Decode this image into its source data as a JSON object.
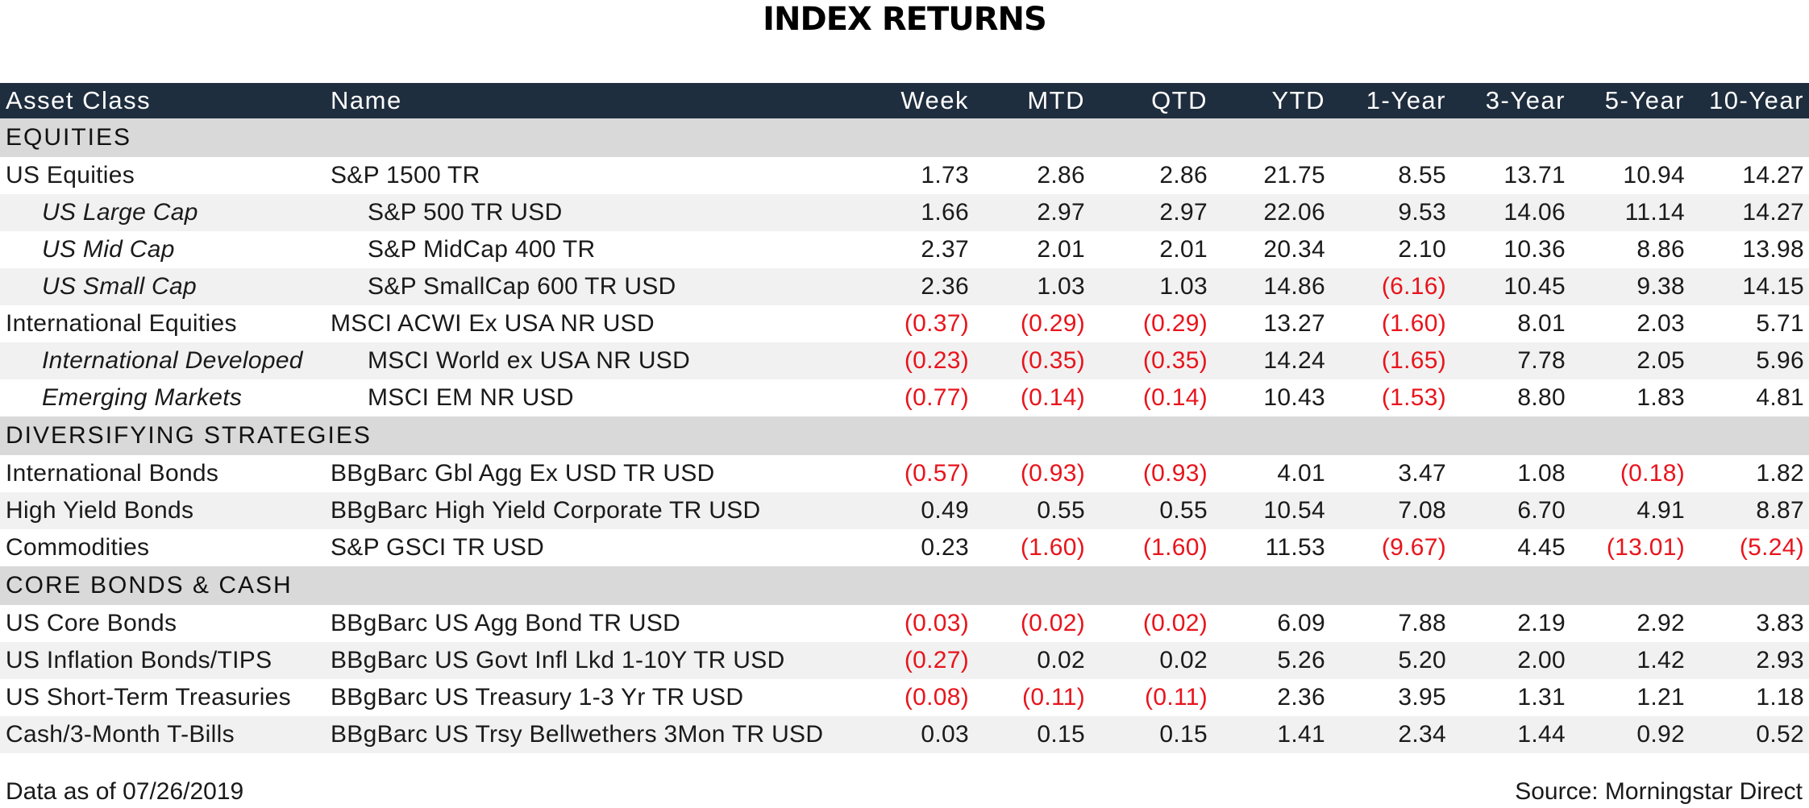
{
  "title": "INDEX RETURNS",
  "columns": [
    "Asset Class",
    "Name",
    "Week",
    "MTD",
    "QTD",
    "YTD",
    "1-Year",
    "3-Year",
    "5-Year",
    "10-Year"
  ],
  "negative_color": "#e8141c",
  "header_color": "#1f2e3e",
  "sections": [
    {
      "label": "EQUITIES",
      "rows": [
        {
          "asset": "US Equities",
          "name": "S&P 1500 TR",
          "sub": false,
          "values": [
            "1.73",
            "2.86",
            "2.86",
            "21.75",
            "8.55",
            "13.71",
            "10.94",
            "14.27"
          ]
        },
        {
          "asset": "US Large Cap",
          "name": "S&P 500 TR USD",
          "sub": true,
          "values": [
            "1.66",
            "2.97",
            "2.97",
            "22.06",
            "9.53",
            "14.06",
            "11.14",
            "14.27"
          ]
        },
        {
          "asset": "US Mid Cap",
          "name": "S&P MidCap 400 TR",
          "sub": true,
          "values": [
            "2.37",
            "2.01",
            "2.01",
            "20.34",
            "2.10",
            "10.36",
            "8.86",
            "13.98"
          ]
        },
        {
          "asset": "US Small Cap",
          "name": "S&P SmallCap 600 TR USD",
          "sub": true,
          "values": [
            "2.36",
            "1.03",
            "1.03",
            "14.86",
            "(6.16)",
            "10.45",
            "9.38",
            "14.15"
          ]
        },
        {
          "asset": "International Equities",
          "name": "MSCI ACWI Ex USA NR USD",
          "sub": false,
          "values": [
            "(0.37)",
            "(0.29)",
            "(0.29)",
            "13.27",
            "(1.60)",
            "8.01",
            "2.03",
            "5.71"
          ]
        },
        {
          "asset": "International Developed",
          "name": "MSCI World ex USA NR USD",
          "sub": true,
          "values": [
            "(0.23)",
            "(0.35)",
            "(0.35)",
            "14.24",
            "(1.65)",
            "7.78",
            "2.05",
            "5.96"
          ]
        },
        {
          "asset": "Emerging Markets",
          "name": "MSCI EM NR USD",
          "sub": true,
          "values": [
            "(0.77)",
            "(0.14)",
            "(0.14)",
            "10.43",
            "(1.53)",
            "8.80",
            "1.83",
            "4.81"
          ]
        }
      ]
    },
    {
      "label": "DIVERSIFYING STRATEGIES",
      "rows": [
        {
          "asset": "International Bonds",
          "name": "BBgBarc Gbl Agg Ex USD TR USD",
          "sub": false,
          "values": [
            "(0.57)",
            "(0.93)",
            "(0.93)",
            "4.01",
            "3.47",
            "1.08",
            "(0.18)",
            "1.82"
          ]
        },
        {
          "asset": "High Yield Bonds",
          "name": "BBgBarc High Yield Corporate TR USD",
          "sub": false,
          "values": [
            "0.49",
            "0.55",
            "0.55",
            "10.54",
            "7.08",
            "6.70",
            "4.91",
            "8.87"
          ]
        },
        {
          "asset": "Commodities",
          "name": "S&P GSCI TR USD",
          "sub": false,
          "values": [
            "0.23",
            "(1.60)",
            "(1.60)",
            "11.53",
            "(9.67)",
            "4.45",
            "(13.01)",
            "(5.24)"
          ]
        }
      ]
    },
    {
      "label": "CORE BONDS & CASH",
      "rows": [
        {
          "asset": "US Core Bonds",
          "name": "BBgBarc US Agg Bond TR USD",
          "sub": false,
          "values": [
            "(0.03)",
            "(0.02)",
            "(0.02)",
            "6.09",
            "7.88",
            "2.19",
            "2.92",
            "3.83"
          ]
        },
        {
          "asset": "US Inflation Bonds/TIPS",
          "name": "BBgBarc US Govt Infl Lkd 1-10Y TR USD",
          "sub": false,
          "values": [
            "(0.27)",
            "0.02",
            "0.02",
            "5.26",
            "5.20",
            "2.00",
            "1.42",
            "2.93"
          ]
        },
        {
          "asset": "US Short-Term Treasuries",
          "name": "BBgBarc US Treasury 1-3 Yr TR USD",
          "sub": false,
          "values": [
            "(0.08)",
            "(0.11)",
            "(0.11)",
            "2.36",
            "3.95",
            "1.31",
            "1.21",
            "1.18"
          ]
        },
        {
          "asset": "Cash/3-Month T-Bills",
          "name": "BBgBarc US Trsy Bellwethers 3Mon TR USD",
          "sub": false,
          "values": [
            "0.03",
            "0.15",
            "0.15",
            "1.41",
            "2.34",
            "1.44",
            "0.92",
            "0.52"
          ]
        }
      ]
    }
  ],
  "footer": {
    "data_as_of": "Data as of 07/26/2019",
    "source": "Source: Morningstar Direct"
  }
}
